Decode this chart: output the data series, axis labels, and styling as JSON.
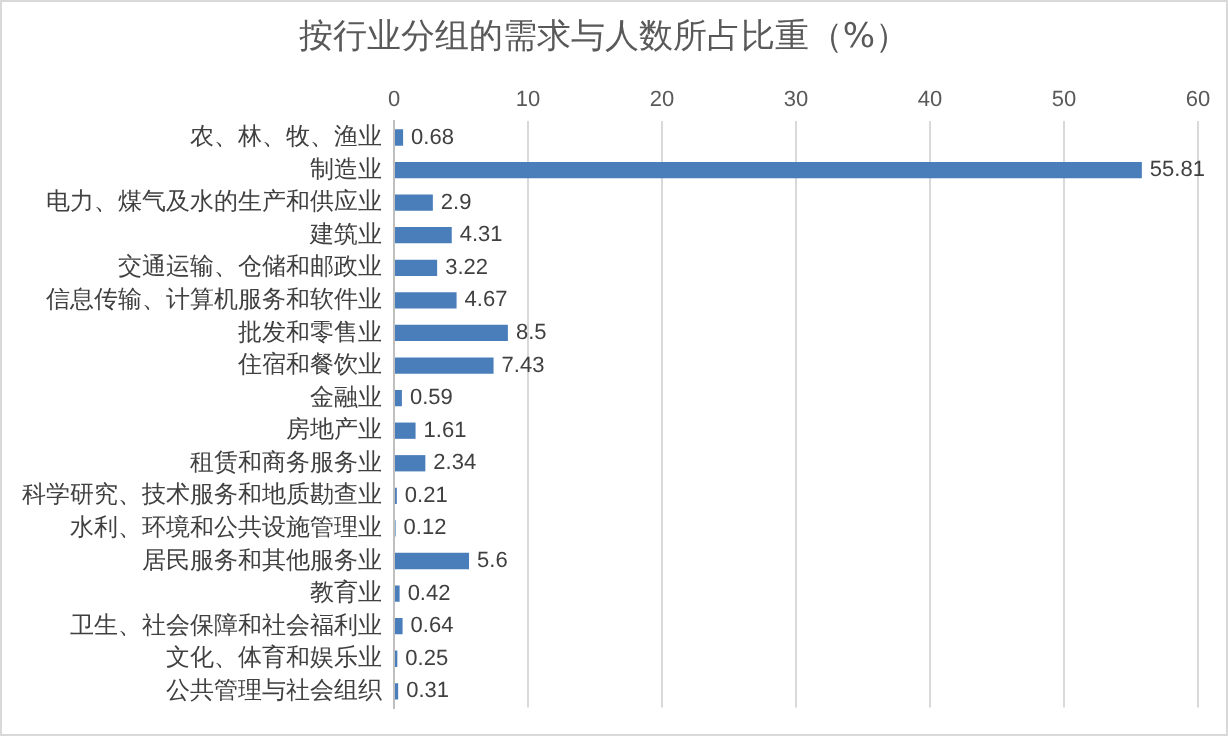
{
  "chart_data": {
    "type": "bar",
    "orientation": "horizontal",
    "title": "按行业分组的需求与人数所占比重（%）",
    "categories": [
      "农、林、牧、渔业",
      "制造业",
      "电力、煤气及水的生产和供应业",
      "建筑业",
      "交通运输、仓储和邮政业",
      "信息传输、计算机服务和软件业",
      "批发和零售业",
      "住宿和餐饮业",
      "金融业",
      "房地产业",
      "租赁和商务服务业",
      "科学研究、技术服务和地质勘查业",
      "水利、环境和公共设施管理业",
      "居民服务和其他服务业",
      "教育业",
      "卫生、社会保障和社会福利业",
      "文化、体育和娱乐业",
      "公共管理与社会组织"
    ],
    "values": [
      0.68,
      55.81,
      2.9,
      4.31,
      3.22,
      4.67,
      8.5,
      7.43,
      0.59,
      1.61,
      2.34,
      0.21,
      0.12,
      5.6,
      0.42,
      0.64,
      0.25,
      0.31
    ],
    "color": "#4a7ebb",
    "xlim": [
      0,
      60
    ],
    "xticks": [
      0,
      10,
      20,
      30,
      40,
      50,
      60
    ],
    "grid": "x",
    "data_labels": true,
    "legend": false
  }
}
